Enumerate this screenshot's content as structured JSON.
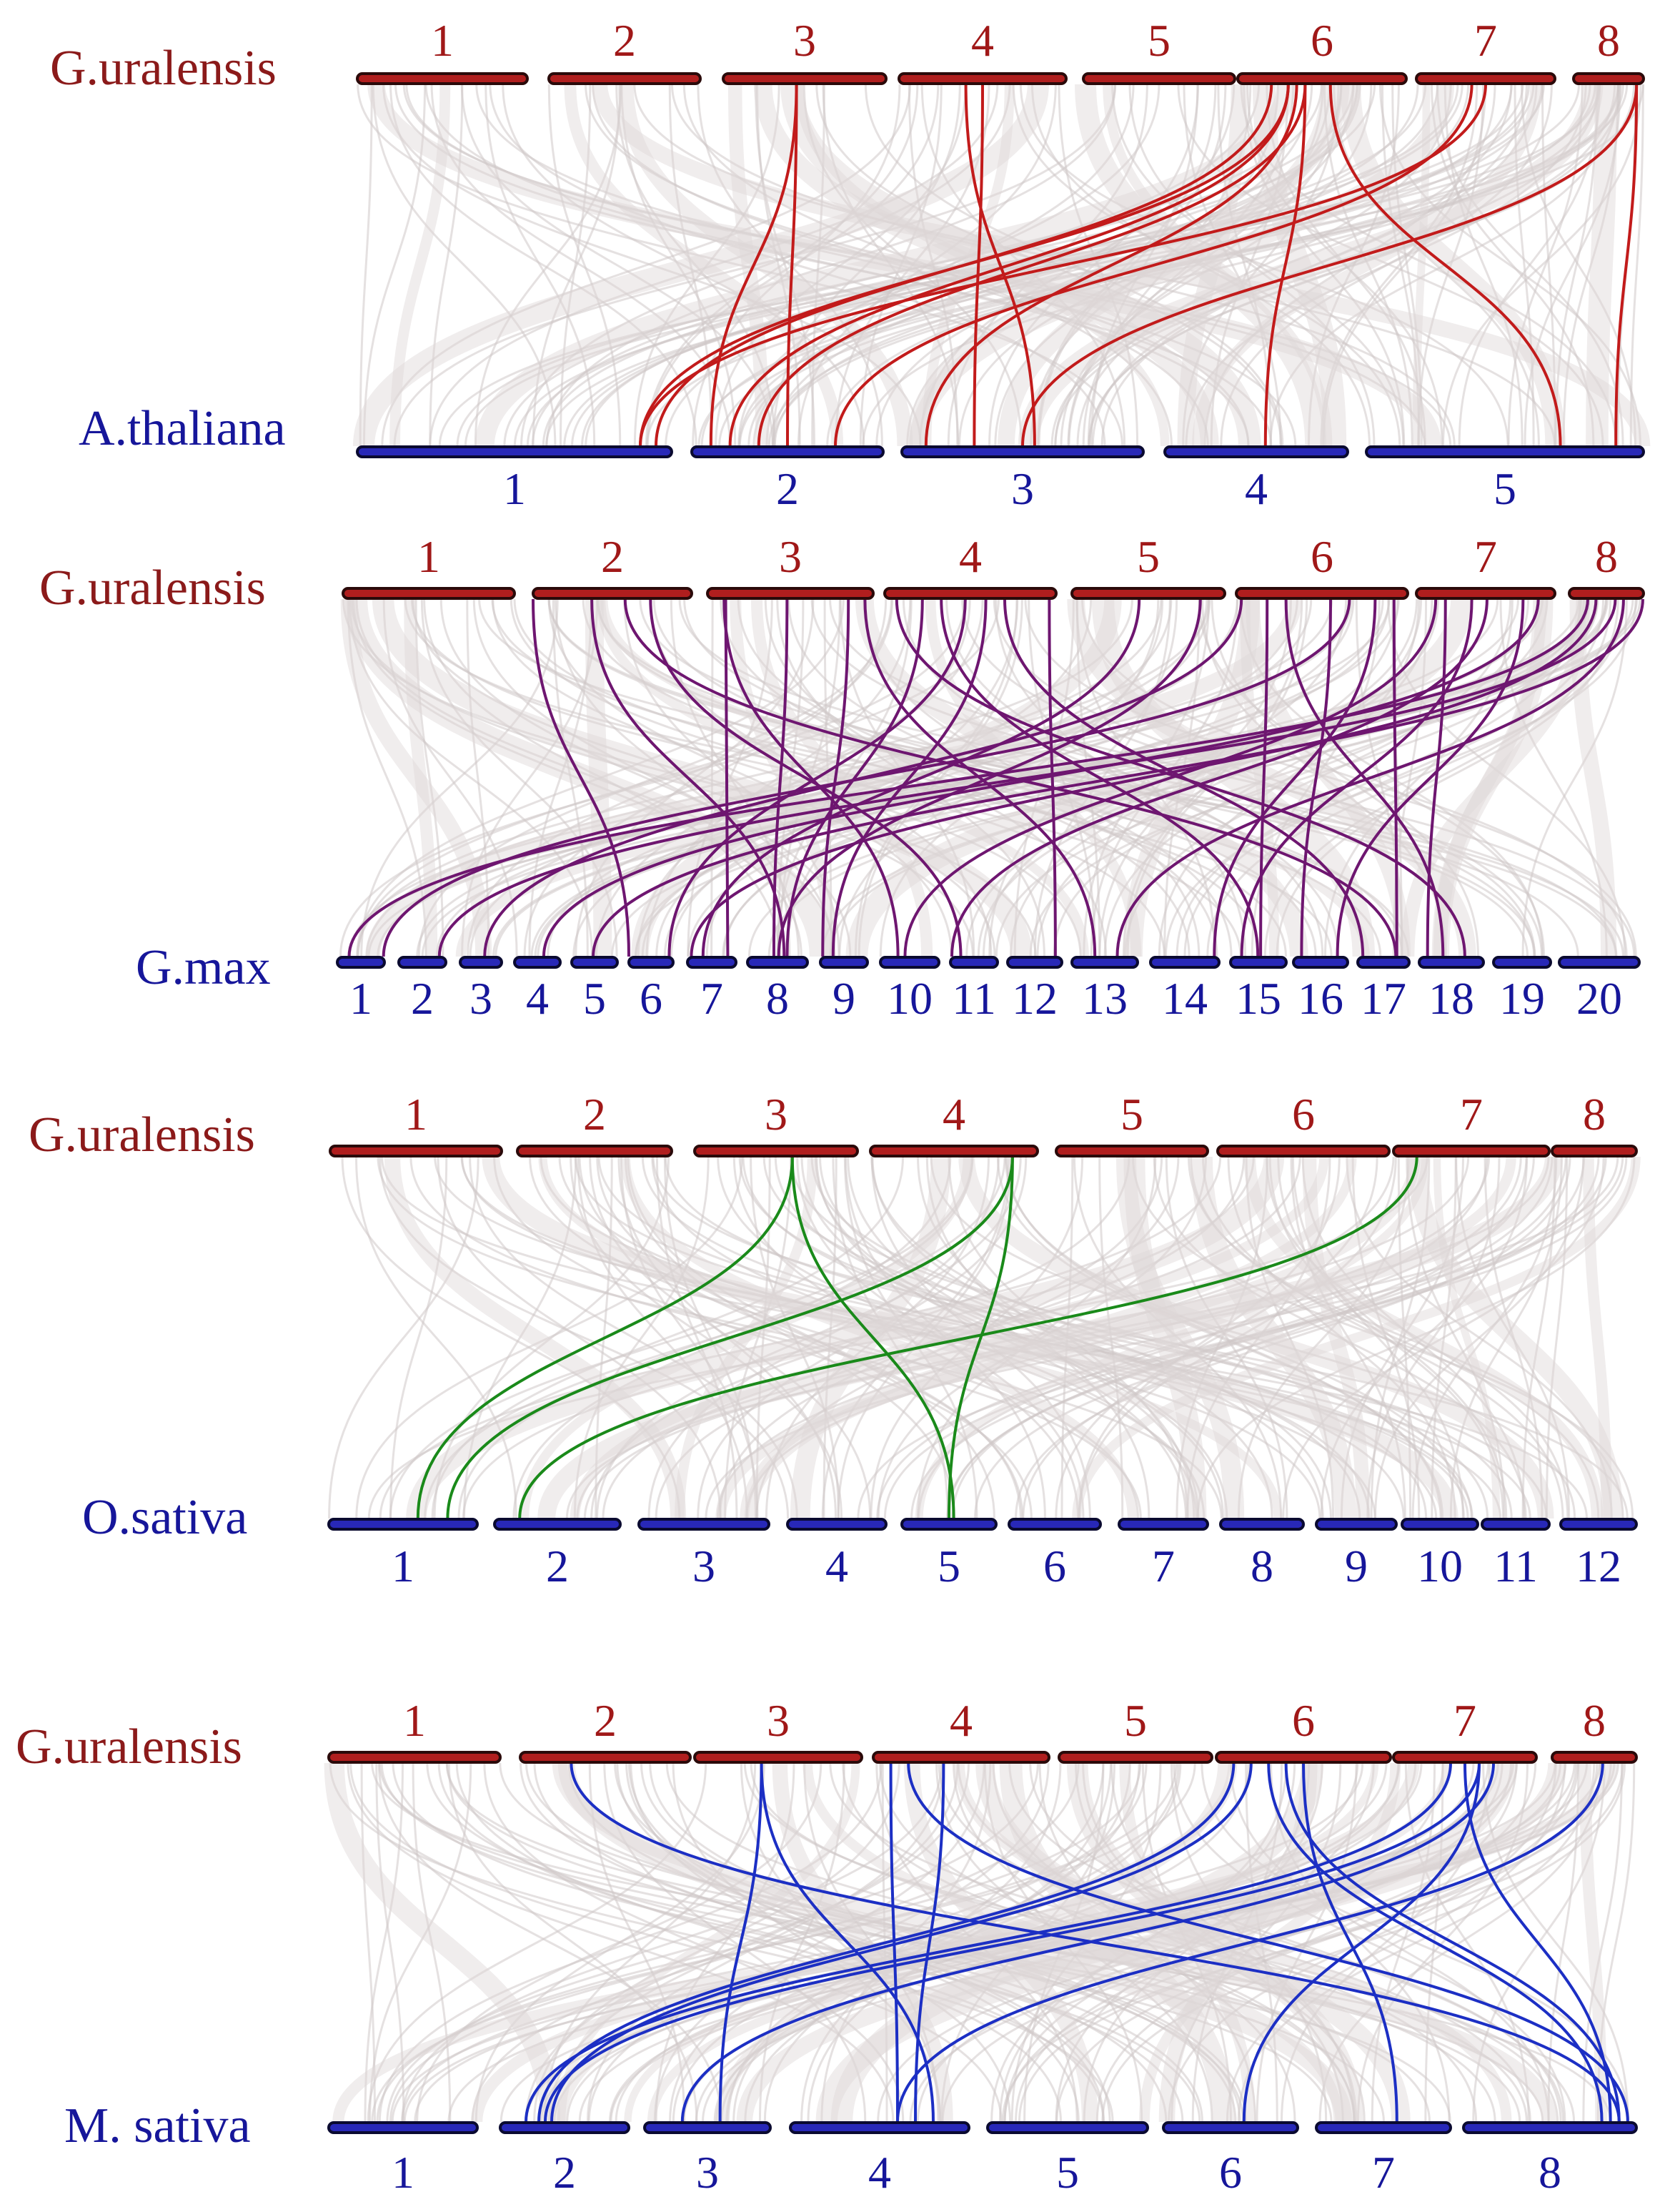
{
  "panels": [
    {
      "top_species": "G.uralensis",
      "bottom_species": "A.thaliana",
      "highlight_color": "#c21b1b",
      "top_chromosomes": [
        "1",
        "2",
        "3",
        "4",
        "5",
        "6",
        "7",
        "8"
      ],
      "bottom_chromosomes": [
        "1",
        "2",
        "3",
        "4",
        "5"
      ]
    },
    {
      "top_species": "G.uralensis",
      "bottom_species": "G.max",
      "highlight_color": "#6e1670",
      "top_chromosomes": [
        "1",
        "2",
        "3",
        "4",
        "5",
        "6",
        "7",
        "8"
      ],
      "bottom_chromosomes": [
        "1",
        "2",
        "3",
        "4",
        "5",
        "6",
        "7",
        "8",
        "9",
        "10",
        "11",
        "12",
        "13",
        "14",
        "15",
        "16",
        "17",
        "18",
        "19",
        "20"
      ]
    },
    {
      "top_species": "G.uralensis",
      "bottom_species": "O.sativa",
      "highlight_color": "#1a8a1a",
      "top_chromosomes": [
        "1",
        "2",
        "3",
        "4",
        "5",
        "6",
        "7",
        "8"
      ],
      "bottom_chromosomes": [
        "1",
        "2",
        "3",
        "4",
        "5",
        "6",
        "7",
        "8",
        "9",
        "10",
        "11",
        "12"
      ]
    },
    {
      "top_species": "G.uralensis",
      "bottom_species": "M. sativa",
      "highlight_color": "#1c2fc4",
      "top_chromosomes": [
        "1",
        "2",
        "3",
        "4",
        "5",
        "6",
        "7",
        "8"
      ],
      "bottom_chromosomes": [
        "1",
        "2",
        "3",
        "4",
        "5",
        "6",
        "7",
        "8"
      ]
    }
  ]
}
